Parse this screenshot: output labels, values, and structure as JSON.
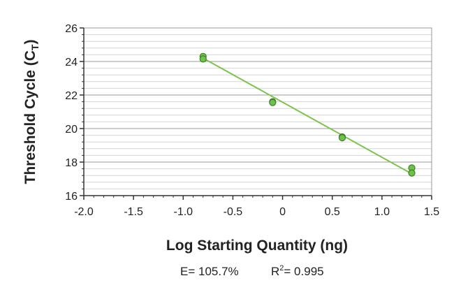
{
  "chart_data": {
    "type": "scatter",
    "title": "",
    "xlabel": "Log Starting Quantity (ng)",
    "ylabel_main": "Threshold Cycle (C",
    "ylabel_sub": "T",
    "ylabel_close": ")",
    "xlim": [
      -2.0,
      1.5
    ],
    "ylim": [
      16,
      26
    ],
    "xticks": [
      "-2.0",
      "-1.5",
      "-1.0",
      "-0.5",
      "0",
      "0.5",
      "1.0",
      "1.5"
    ],
    "xtick_values": [
      -2.0,
      -1.5,
      -1.0,
      -0.5,
      0,
      0.5,
      1.0,
      1.5
    ],
    "yticks": [
      "16",
      "18",
      "20",
      "22",
      "24",
      "26"
    ],
    "ytick_values": [
      16,
      18,
      20,
      22,
      24,
      26
    ],
    "grid": true,
    "series": [
      {
        "points": [
          {
            "x": -0.8,
            "y": 24.3
          },
          {
            "x": -0.8,
            "y": 24.15
          },
          {
            "x": -0.1,
            "y": 21.6
          },
          {
            "x": -0.1,
            "y": 21.55
          },
          {
            "x": 0.6,
            "y": 19.5
          },
          {
            "x": 0.6,
            "y": 19.45
          },
          {
            "x": 1.3,
            "y": 17.65
          },
          {
            "x": 1.3,
            "y": 17.35
          }
        ]
      }
    ],
    "fit_line": {
      "x": [
        -0.8,
        1.3
      ],
      "y": [
        24.2,
        17.3
      ]
    },
    "efficiency_label": "E= 105.7%",
    "r2_label_prefix": "R",
    "r2_label_sup": "2",
    "r2_label_suffix": "= 0.995",
    "colors": {
      "point_fill": "#6cc24a",
      "point_stroke": "#3f7f2a",
      "fit_line": "#7dc24b",
      "major_grid": "#9a9a9a",
      "minor_grid": "#d6d6d6",
      "axis": "#333333"
    }
  }
}
